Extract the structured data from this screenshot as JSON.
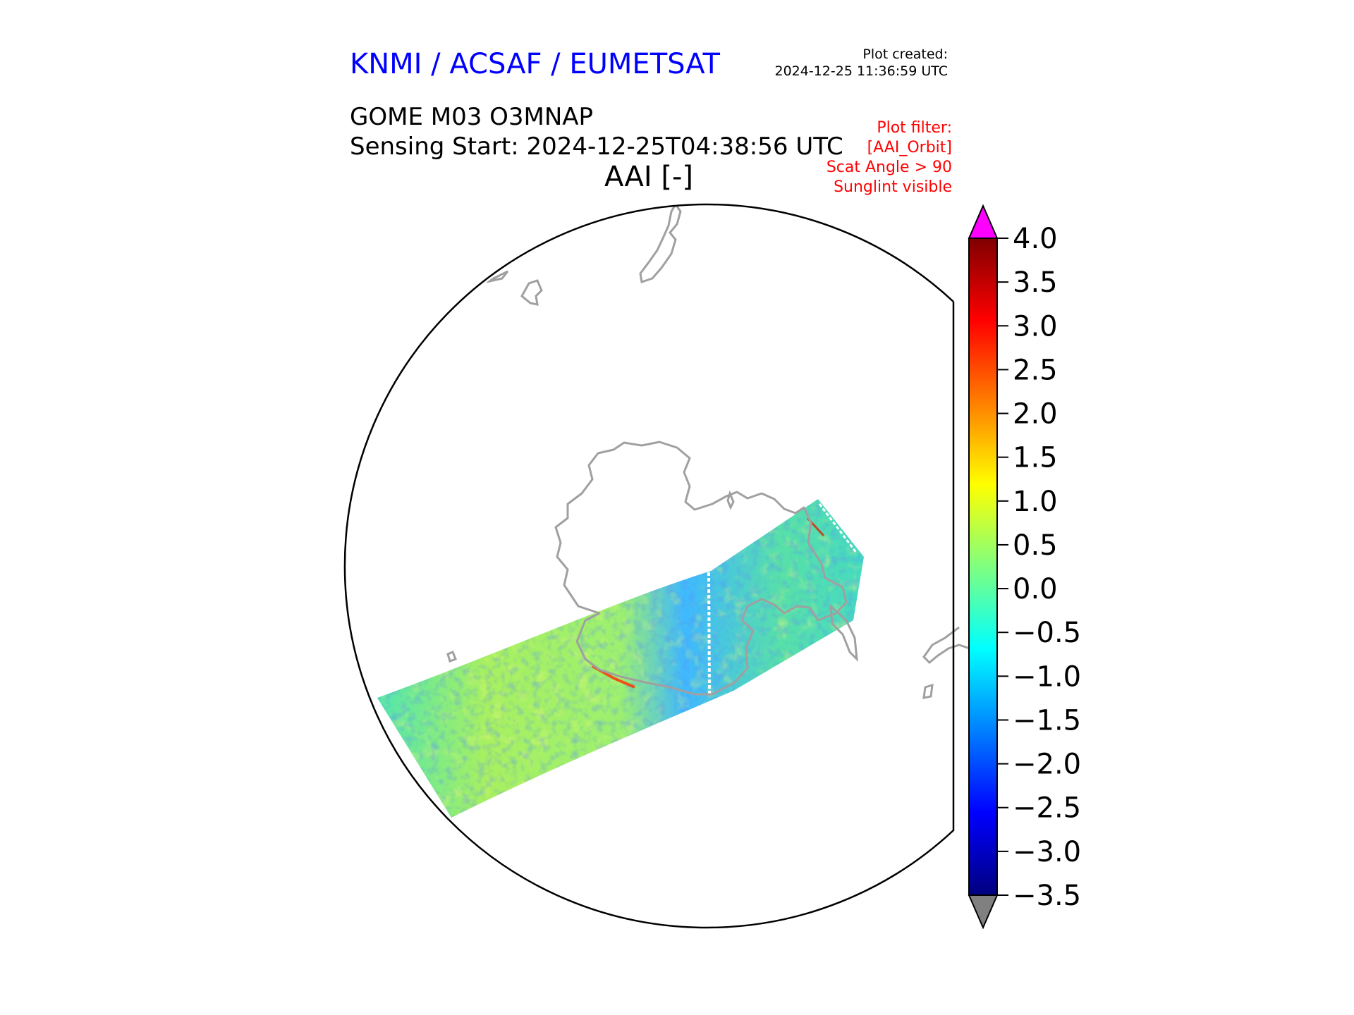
{
  "header": {
    "org": "KNMI / ACSAF / EUMETSAT",
    "plot_created_label": "Plot created:",
    "plot_created_time": "2024-12-25 11:36:59 UTC",
    "product": "GOME M03 O3MNAP",
    "sensing_start": "Sensing Start: 2024-12-25T04:38:56 UTC",
    "plot_title": "AAI [-]",
    "filters": [
      "Plot filter:",
      "[AAI_Orbit]",
      "Scat Angle > 90",
      "Sunglint visible"
    ]
  },
  "map": {
    "projection": "south polar stereographic",
    "coastline_color": "#a0a0a0",
    "swath_colormap": "jet"
  },
  "colorbar": {
    "variable": "AAI",
    "min": -3.5,
    "max": 4.0,
    "ticks": [
      "4.0",
      "3.5",
      "3.0",
      "2.5",
      "2.0",
      "1.5",
      "1.0",
      "0.5",
      "0.0",
      "−0.5",
      "−1.0",
      "−1.5",
      "−2.0",
      "−2.5",
      "−3.0",
      "−3.5"
    ],
    "over_color": "#ff00ff",
    "under_color": "#808080",
    "colors": [
      "#00007f",
      "#0000ff",
      "#007fff",
      "#00ffff",
      "#7fff7f",
      "#ffff00",
      "#ff7f00",
      "#ff0000",
      "#7f0000"
    ]
  }
}
